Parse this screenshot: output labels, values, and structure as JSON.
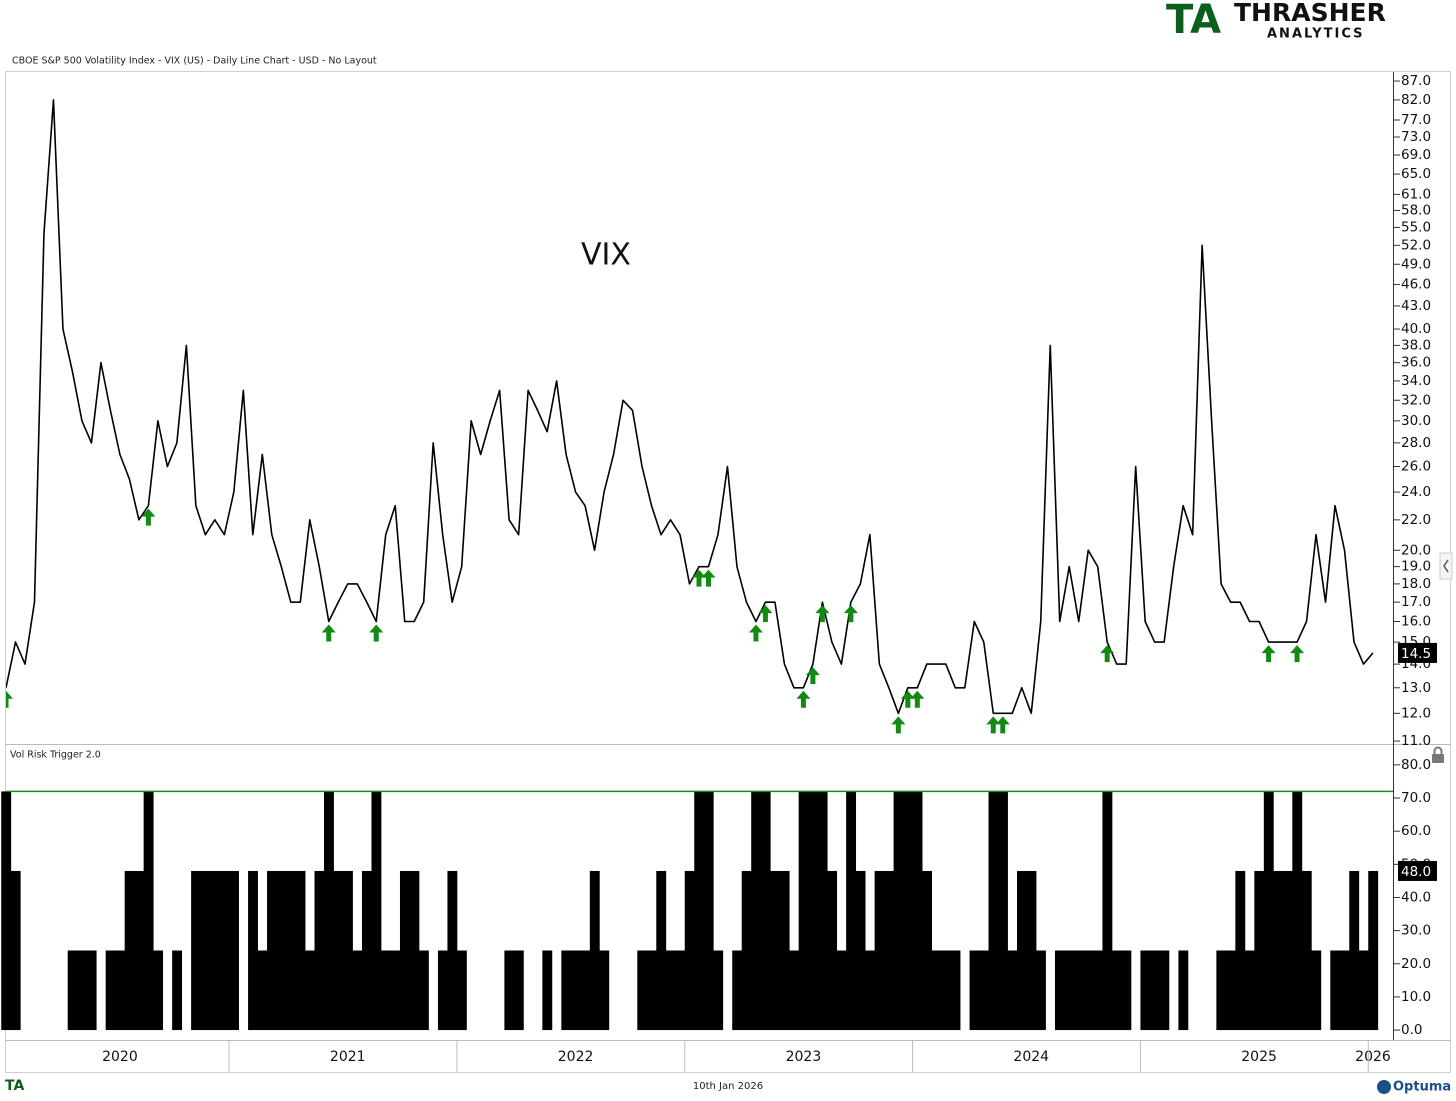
{
  "header": {
    "logo_mark": "TA",
    "logo_name": "THRASHER",
    "logo_sub": "ANALYTICS",
    "footer_mark": "TA",
    "footer_date": "10th Jan 2026",
    "brand": "Optuma"
  },
  "chart_data": [
    {
      "type": "line",
      "title": "CBOE S&P 500 Volatility Index - VIX (US) - Daily Line Chart - USD - No Layout",
      "annotation": "VIX",
      "color": "#000000",
      "log_scale": true,
      "categories": [
        null,
        null,
        null,
        null,
        null,
        null,
        null,
        null,
        null,
        null,
        null,
        null,
        "2020",
        null,
        null,
        null,
        null,
        null,
        null,
        null,
        null,
        null,
        null,
        null,
        null,
        null,
        null,
        null,
        null,
        null,
        null,
        null,
        null,
        null,
        null,
        null,
        "2021",
        null,
        null,
        null,
        null,
        null,
        null,
        null,
        null,
        null,
        null,
        null,
        null,
        null,
        null,
        null,
        null,
        null,
        null,
        null,
        null,
        null,
        null,
        null,
        "2022",
        null,
        null,
        null,
        null,
        null,
        null,
        null,
        null,
        null,
        null,
        null,
        null,
        null,
        null,
        null,
        null,
        null,
        null,
        null,
        null,
        null,
        null,
        null,
        "2023",
        null,
        null,
        null,
        null,
        null,
        null,
        null,
        null,
        null,
        null,
        null,
        null,
        null,
        null,
        null,
        null,
        null,
        null,
        null,
        null,
        null,
        null,
        null,
        "2024",
        null,
        null,
        null,
        null,
        null,
        null,
        null,
        null,
        null,
        null,
        null,
        null,
        null,
        null,
        null,
        null,
        null,
        null,
        null,
        null,
        null,
        null,
        null,
        "2025",
        null,
        null,
        null,
        null,
        null,
        null,
        null,
        null,
        null,
        null,
        null,
        "2026"
      ],
      "values": [
        13,
        15,
        14,
        17,
        54,
        82,
        40,
        35,
        30,
        28,
        36,
        31,
        27,
        25,
        22,
        23,
        30,
        26,
        28,
        38,
        23,
        21,
        22,
        21,
        24,
        33,
        21,
        27,
        21,
        19,
        17,
        17,
        22,
        19,
        16,
        17,
        18,
        18,
        17,
        16,
        21,
        23,
        16,
        16,
        17,
        28,
        21,
        17,
        19,
        30,
        27,
        30,
        33,
        22,
        21,
        33,
        31,
        29,
        34,
        27,
        24,
        23,
        20,
        24,
        27,
        32,
        31,
        26,
        23,
        21,
        22,
        21,
        18,
        19,
        19,
        21,
        26,
        19,
        17,
        16,
        17,
        17,
        14,
        13,
        13,
        14,
        17,
        15,
        14,
        17,
        18,
        21,
        14,
        13,
        12,
        13,
        13,
        14,
        14,
        14,
        13,
        13,
        16,
        15,
        12,
        12,
        12,
        13,
        12,
        16,
        38,
        16,
        19,
        16,
        20,
        19,
        15,
        14,
        14,
        26,
        16,
        15,
        15,
        19,
        23,
        21,
        52,
        30,
        18,
        17,
        17,
        16,
        16,
        15,
        15,
        15,
        15,
        16,
        21,
        17,
        23,
        20,
        15,
        14,
        14.5
      ],
      "signals": {
        "color": "#138a13",
        "values": [
          13,
          null,
          null,
          null,
          null,
          null,
          null,
          null,
          null,
          null,
          null,
          null,
          null,
          null,
          null,
          23,
          null,
          null,
          null,
          null,
          null,
          null,
          null,
          null,
          null,
          null,
          null,
          null,
          null,
          null,
          null,
          null,
          null,
          null,
          16,
          null,
          null,
          null,
          null,
          16,
          null,
          null,
          null,
          null,
          null,
          null,
          null,
          null,
          null,
          null,
          null,
          null,
          null,
          null,
          null,
          null,
          null,
          null,
          null,
          null,
          null,
          null,
          null,
          null,
          null,
          null,
          null,
          null,
          null,
          null,
          null,
          null,
          null,
          19,
          19,
          null,
          null,
          null,
          null,
          16,
          17,
          null,
          null,
          null,
          13,
          14,
          17,
          null,
          null,
          17,
          null,
          null,
          null,
          null,
          12,
          13,
          13,
          null,
          null,
          null,
          null,
          null,
          null,
          null,
          12,
          12,
          null,
          null,
          null,
          null,
          null,
          null,
          null,
          null,
          null,
          null,
          15,
          null,
          null,
          null,
          null,
          null,
          null,
          null,
          null,
          null,
          null,
          null,
          null,
          null,
          null,
          null,
          null,
          15,
          null,
          null,
          15,
          null,
          null,
          null,
          null,
          null,
          null,
          null,
          null
        ]
      },
      "ylim": [
        10.9,
        89.5
      ],
      "yticks": [
        {
          "value": 11,
          "label": "11.0"
        },
        {
          "value": 12,
          "label": "12.0"
        },
        {
          "value": 13,
          "label": "13.0"
        },
        {
          "value": 14,
          "label": "14.0"
        },
        {
          "value": 15,
          "label": "15.0"
        },
        {
          "value": 16,
          "label": "16.0"
        },
        {
          "value": 17,
          "label": "17.0"
        },
        {
          "value": 18,
          "label": "18.0"
        },
        {
          "value": 19,
          "label": "19.0"
        },
        {
          "value": 20,
          "label": "20.0"
        },
        {
          "value": 22,
          "label": "22.0"
        },
        {
          "value": 24,
          "label": "24.0"
        },
        {
          "value": 26,
          "label": "26.0"
        },
        {
          "value": 28,
          "label": "28.0"
        },
        {
          "value": 30,
          "label": "30.0"
        },
        {
          "value": 32,
          "label": "32.0"
        },
        {
          "value": 34,
          "label": "34.0"
        },
        {
          "value": 36,
          "label": "36.0"
        },
        {
          "value": 38,
          "label": "38.0"
        },
        {
          "value": 40,
          "label": "40.0"
        },
        {
          "value": 43,
          "label": "43.0"
        },
        {
          "value": 46,
          "label": "46.0"
        },
        {
          "value": 49,
          "label": "49.0"
        },
        {
          "value": 52,
          "label": "52.0"
        },
        {
          "value": 55,
          "label": "55.0"
        },
        {
          "value": 58,
          "label": "58.0"
        },
        {
          "value": 61,
          "label": "61.0"
        },
        {
          "value": 65,
          "label": "65.0"
        },
        {
          "value": 69,
          "label": "69.0"
        },
        {
          "value": 73,
          "label": "73.0"
        },
        {
          "value": 77,
          "label": "77.0"
        },
        {
          "value": 82,
          "label": "82.0"
        },
        {
          "value": 87,
          "label": "87.0"
        }
      ]
    },
    {
      "type": "bar",
      "title": "Vol Risk Trigger 2.0",
      "color": "#000000",
      "reference_line": {
        "value": 72,
        "color": "#1e8a1e"
      },
      "values": [
        72,
        48,
        0,
        0,
        0,
        0,
        0,
        24,
        24,
        24,
        0,
        24,
        24,
        48,
        48,
        72,
        24,
        0,
        24,
        0,
        48,
        48,
        48,
        48,
        48,
        0,
        48,
        24,
        48,
        48,
        48,
        48,
        24,
        48,
        72,
        48,
        48,
        24,
        48,
        72,
        24,
        24,
        48,
        48,
        24,
        0,
        24,
        48,
        24,
        0,
        0,
        0,
        0,
        24,
        24,
        0,
        0,
        24,
        0,
        24,
        24,
        24,
        48,
        24,
        0,
        0,
        0,
        24,
        24,
        48,
        24,
        24,
        48,
        72,
        72,
        24,
        0,
        24,
        48,
        72,
        72,
        48,
        48,
        24,
        72,
        72,
        72,
        48,
        24,
        72,
        48,
        24,
        48,
        48,
        72,
        72,
        72,
        48,
        24,
        24,
        24,
        0,
        24,
        24,
        72,
        72,
        24,
        48,
        48,
        24,
        0,
        24,
        24,
        24,
        24,
        24,
        72,
        24,
        24,
        0,
        24,
        24,
        24,
        0,
        24,
        0,
        0,
        0,
        24,
        24,
        48,
        24,
        48,
        72,
        48,
        48,
        72,
        48,
        24,
        0,
        24,
        24,
        48,
        24,
        48
      ],
      "value_labels": [
        null,
        null,
        null,
        null,
        null,
        null,
        null,
        null,
        null,
        null,
        null,
        null,
        null,
        null,
        null,
        null,
        null,
        null,
        null,
        null,
        null,
        null,
        null,
        null,
        null,
        null,
        null,
        null,
        null,
        null,
        null,
        null,
        null,
        null,
        null,
        null,
        null,
        null,
        null,
        null,
        null,
        null,
        null,
        null,
        null,
        null,
        null,
        null,
        null,
        null,
        null,
        null,
        null,
        null,
        null,
        null,
        null,
        null,
        null,
        null,
        null,
        null,
        null,
        null,
        null,
        null,
        null,
        null,
        null,
        null,
        null,
        null,
        null,
        null,
        null,
        null,
        null,
        null,
        null,
        null,
        null,
        null,
        null,
        null,
        null,
        null,
        null,
        null,
        null,
        null,
        null,
        null,
        null,
        null,
        null,
        null,
        null,
        null,
        null,
        null,
        null,
        null,
        null,
        null,
        null,
        null,
        null,
        null,
        null,
        null,
        null,
        null,
        null,
        null,
        null,
        null,
        null,
        null,
        null,
        null,
        null,
        null,
        null,
        null,
        null,
        null,
        null,
        null,
        null,
        null,
        null,
        null,
        null,
        null,
        null,
        null,
        null,
        null,
        null,
        null,
        null,
        null,
        null,
        null,
        "48.0"
      ],
      "ylim": [
        -3,
        86
      ],
      "yticks": [
        {
          "value": 0,
          "label": "0.0"
        },
        {
          "value": 10,
          "label": "10.0"
        },
        {
          "value": 20,
          "label": "20.0"
        },
        {
          "value": 30,
          "label": "30.0"
        },
        {
          "value": 40,
          "label": "40.0"
        },
        {
          "value": 50,
          "label": "50.0"
        },
        {
          "value": 60,
          "label": "60.0"
        },
        {
          "value": 70,
          "label": "70.0"
        },
        {
          "value": 80,
          "label": "80.0"
        }
      ]
    }
  ]
}
